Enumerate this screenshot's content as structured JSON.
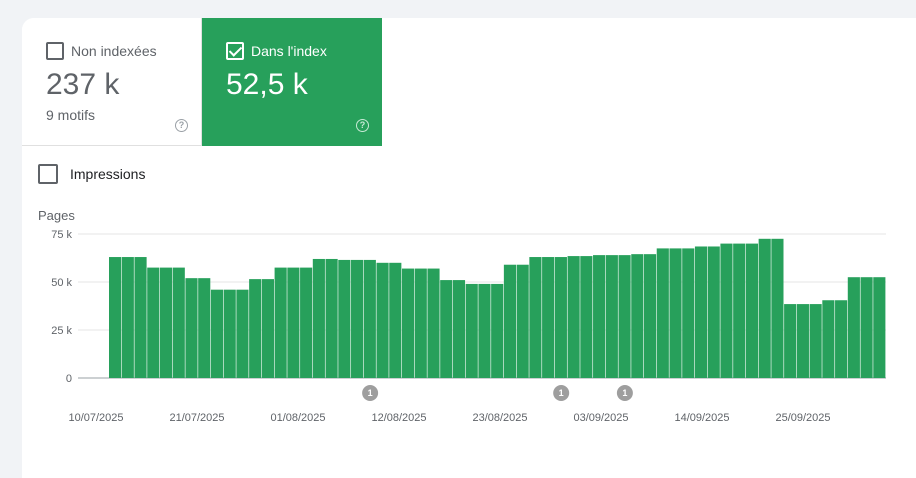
{
  "tiles": {
    "excluded": {
      "label": "Non indexées",
      "value": "237 k",
      "sub": "9 motifs",
      "checked": false,
      "help_icon": "help-circle-icon"
    },
    "indexed": {
      "label": "Dans l'index",
      "value": "52,5 k",
      "checked": true,
      "help_icon": "help-circle-icon",
      "color": "#27a05b"
    }
  },
  "impressions": {
    "label": "Impressions",
    "checked": false
  },
  "chart_data": {
    "type": "bar",
    "ylabel": "Pages",
    "yticks": [
      "0",
      "25 k",
      "50 k",
      "75 k"
    ],
    "ylim": [
      0,
      75000
    ],
    "xtick_labels": [
      "10/07/2025",
      "21/07/2025",
      "01/08/2025",
      "12/08/2025",
      "23/08/2025",
      "03/09/2025",
      "14/09/2025",
      "25/09/2025"
    ],
    "bar_color": "#27a05b",
    "grid": true,
    "values": [
      63000,
      63000,
      63000,
      57500,
      57500,
      57500,
      52000,
      52000,
      46000,
      46000,
      46000,
      51500,
      51500,
      57500,
      57500,
      57500,
      62000,
      62000,
      61500,
      61500,
      61500,
      60000,
      60000,
      57000,
      57000,
      57000,
      51000,
      51000,
      49000,
      49000,
      49000,
      59000,
      59000,
      63000,
      63000,
      63000,
      63500,
      63500,
      64000,
      64000,
      64000,
      64500,
      64500,
      67500,
      67500,
      67500,
      68500,
      68500,
      70000,
      70000,
      70000,
      72500,
      72500,
      38500,
      38500,
      38500,
      40500,
      40500,
      52500,
      52500,
      52500
    ],
    "annotations": [
      {
        "index": 20,
        "label": "1"
      },
      {
        "index": 35,
        "label": "1"
      },
      {
        "index": 40,
        "label": "1"
      }
    ]
  }
}
